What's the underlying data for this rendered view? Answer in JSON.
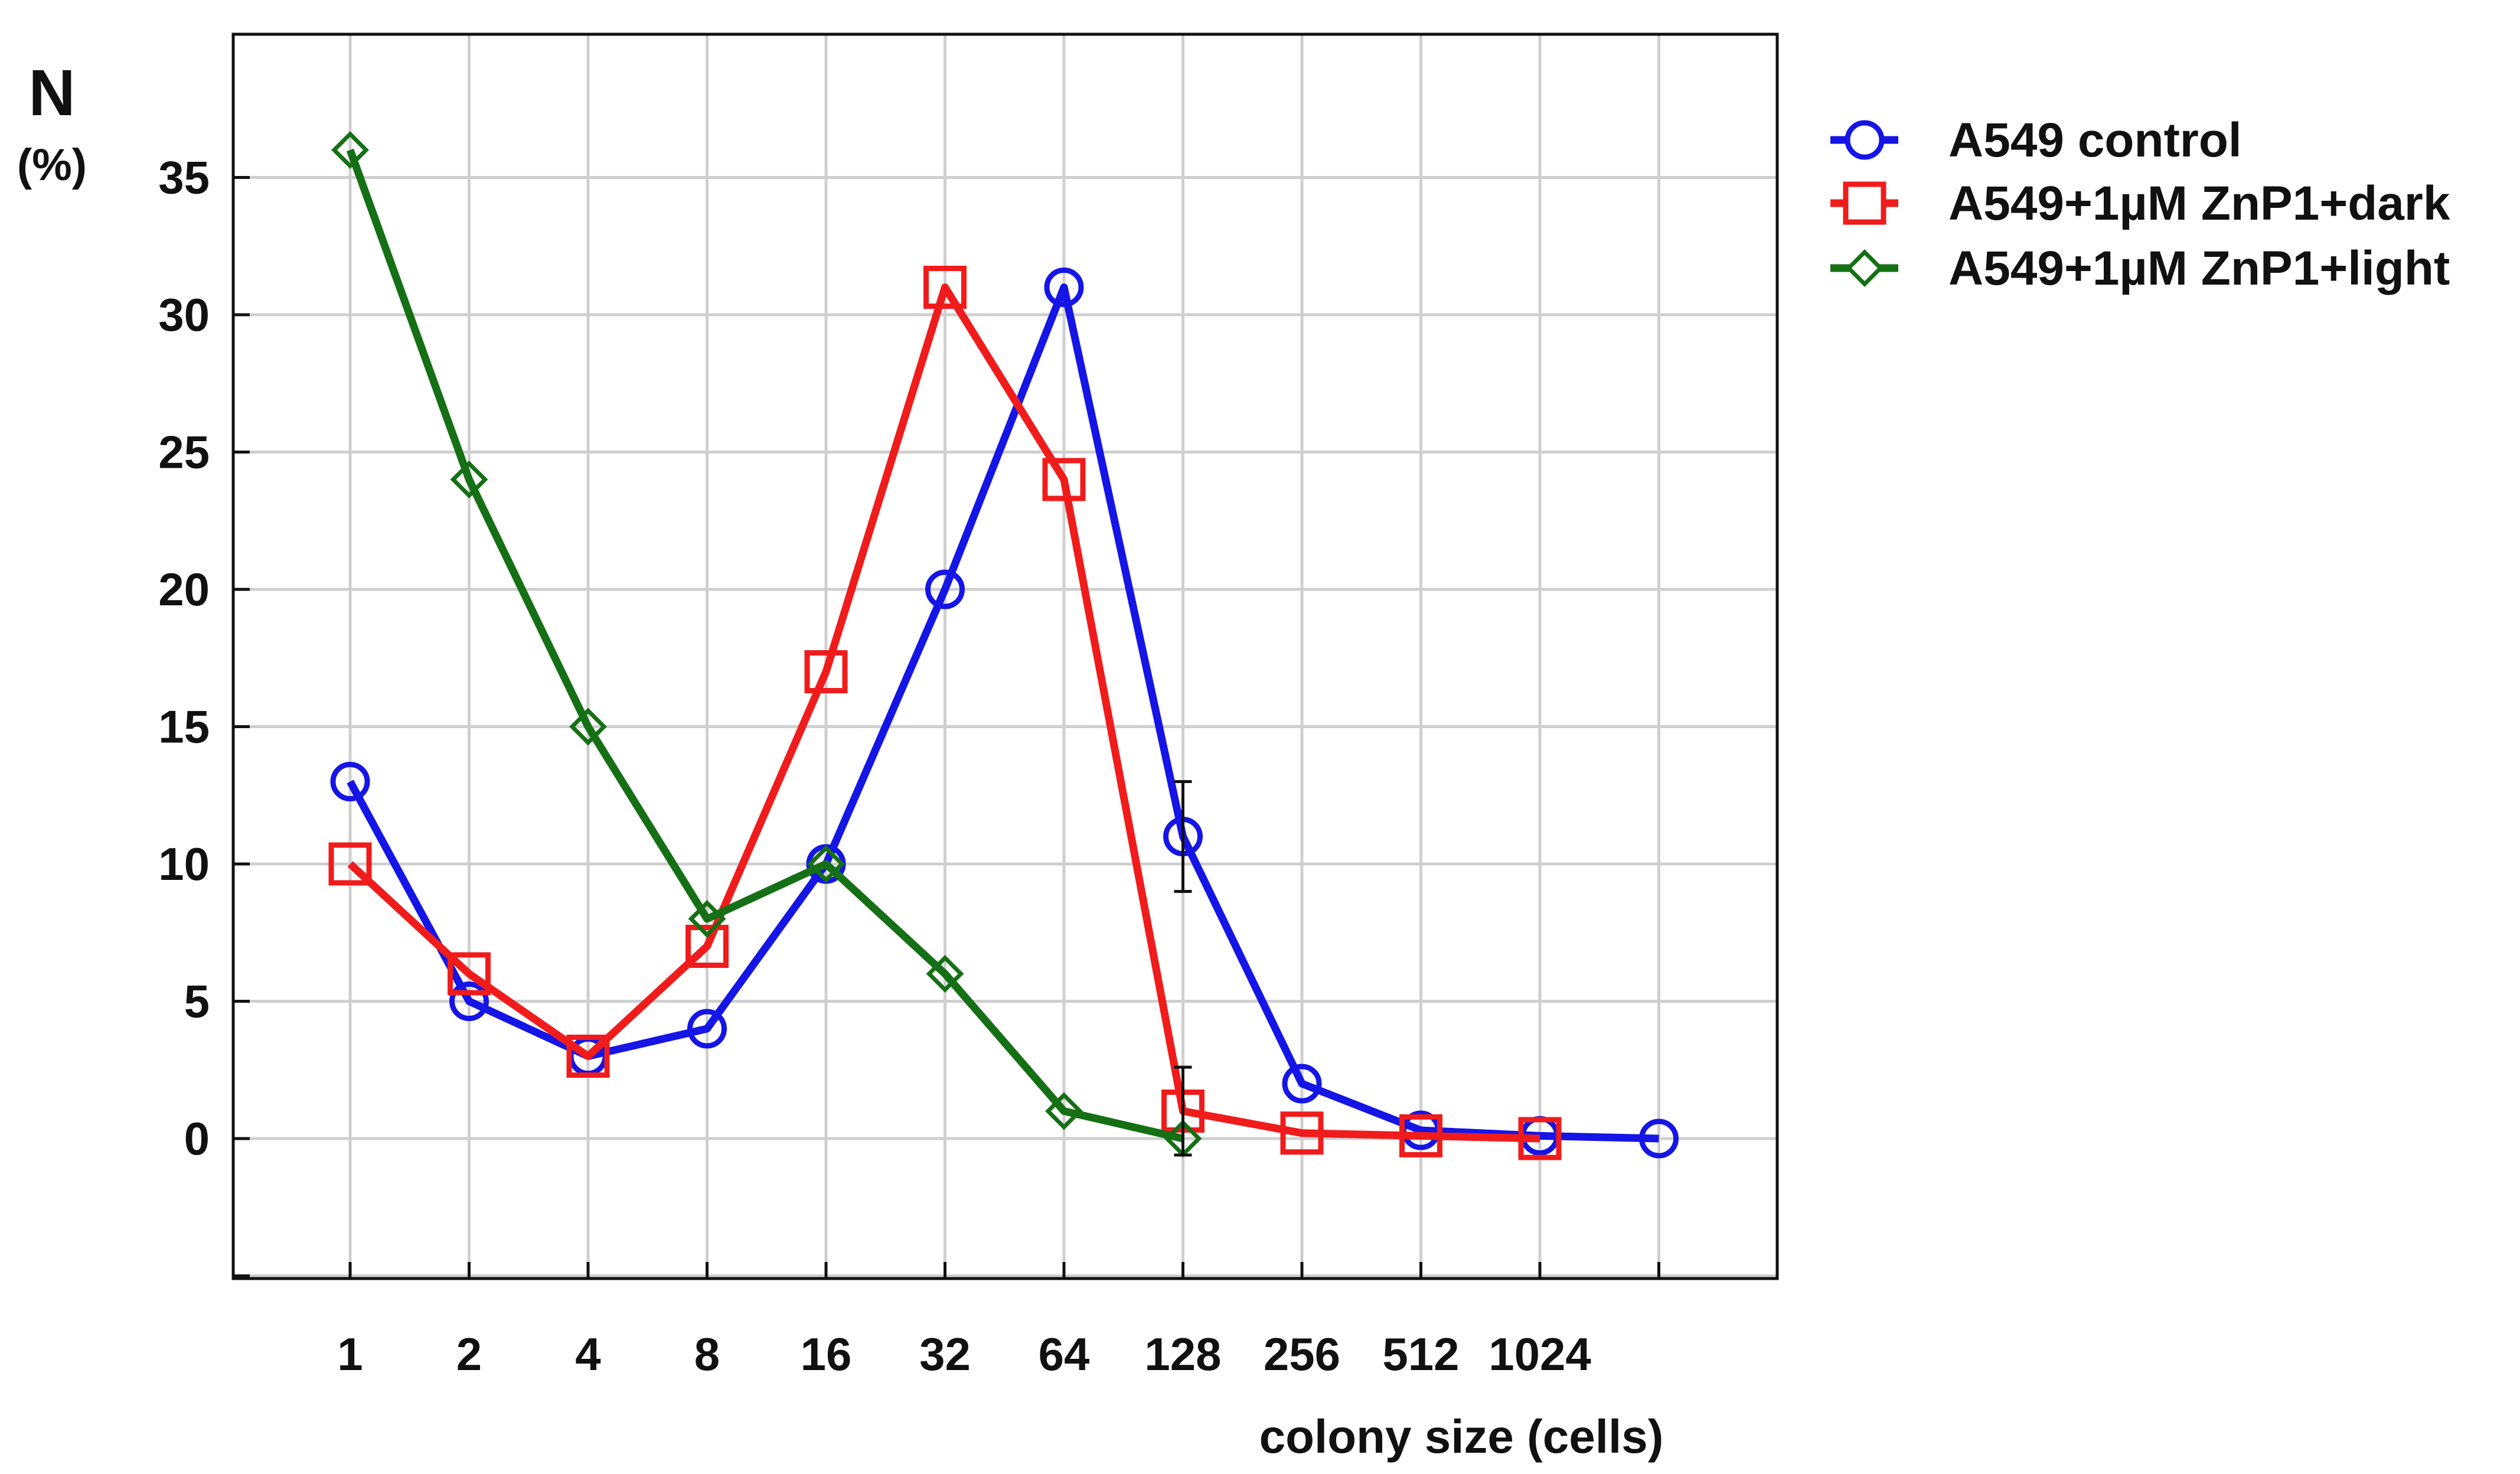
{
  "chart_data": {
    "type": "line",
    "title": "",
    "xlabel": "colony size (cells)",
    "ylabel_main": "N",
    "ylabel_unit": "(%)",
    "categories": [
      "1",
      "2",
      "4",
      "8",
      "16",
      "32",
      "64",
      "128",
      "256",
      "512",
      "1024",
      ""
    ],
    "ylim": [
      -5,
      40
    ],
    "yticks": [
      0,
      5,
      10,
      15,
      20,
      25,
      30,
      35
    ],
    "grid": true,
    "legend_position": "right-top",
    "series": [
      {
        "name": "A549 control",
        "color": "#1515e6",
        "marker": "circle",
        "values": [
          13,
          5,
          3,
          4,
          10,
          20,
          31,
          11,
          2,
          0.3,
          0.1,
          0
        ]
      },
      {
        "name": "A549+1µM ZnP1+dark",
        "color": "#f01c1c",
        "marker": "square",
        "values": [
          10,
          6,
          3,
          7,
          17,
          31,
          24,
          1,
          0.2,
          0.1,
          0,
          null
        ]
      },
      {
        "name": "A549+1µM ZnP1+light",
        "color": "#157015",
        "marker": "diamond",
        "values": [
          36,
          24,
          15,
          8,
          10,
          6,
          1,
          0,
          null,
          null,
          null,
          null
        ]
      }
    ],
    "error_bars": [
      {
        "category_index": 7,
        "center": 11,
        "low": 9,
        "high": 13
      },
      {
        "category_index": 7,
        "center": 1,
        "low": -0.6,
        "high": 2.6
      }
    ]
  }
}
